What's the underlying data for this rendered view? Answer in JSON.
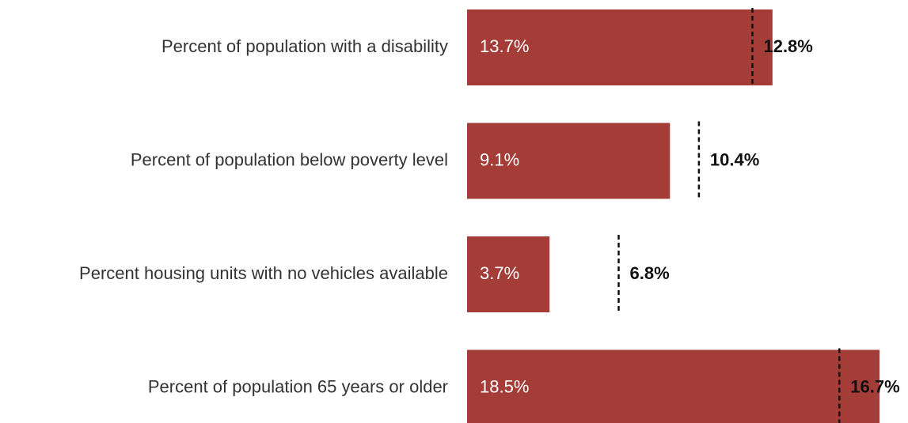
{
  "chart_data": {
    "type": "bar",
    "orientation": "horizontal",
    "categories": [
      "Percent of population with a disability",
      "Percent of population below poverty level",
      "Percent housing units with no vehicles available",
      "Percent of population 65 years or older"
    ],
    "series": [
      {
        "values": [
          13.7,
          9.1,
          3.7,
          18.5
        ],
        "value_labels": [
          "13.7%",
          "9.1%",
          "3.7%",
          "18.5%"
        ],
        "color": "#a43c38"
      },
      {
        "style": "dashed-reference-line",
        "values": [
          12.8,
          10.4,
          6.8,
          16.7
        ],
        "value_labels": [
          "12.8%",
          "10.4%",
          "6.8%",
          "16.7%"
        ],
        "color": "#111111"
      }
    ],
    "xlim": [
      0,
      18.5
    ],
    "grid": false,
    "legend": "none"
  }
}
